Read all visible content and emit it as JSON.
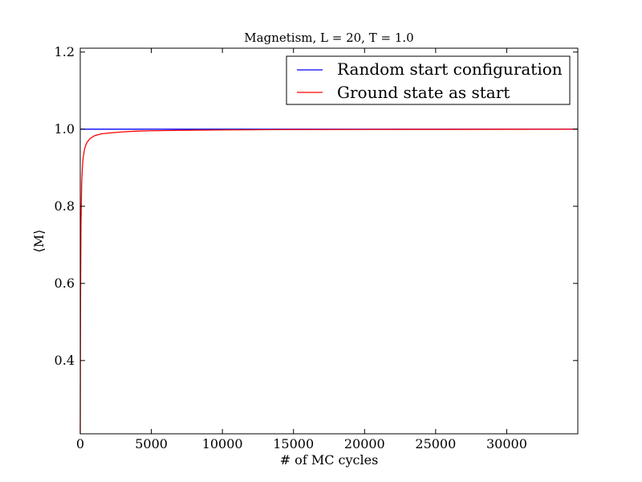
{
  "chart_data": {
    "type": "line",
    "title": "Magnetism, L = 20, T = 1.0",
    "xlabel": "# of MC cycles",
    "ylabel": "⟨M⟩",
    "xlim": [
      0,
      35000
    ],
    "ylim": [
      0.21,
      1.21
    ],
    "xticks": [
      0,
      5000,
      10000,
      15000,
      20000,
      25000,
      30000
    ],
    "yticks": [
      0.4,
      0.6,
      0.8,
      1.0,
      1.2
    ],
    "grid": false,
    "legend_position": "top-right",
    "series": [
      {
        "name": "Random start configuration",
        "color": "#0000ff",
        "x": [
          0,
          35000
        ],
        "y": [
          1.0,
          1.0
        ]
      },
      {
        "name": "Ground state as start",
        "color": "#ff0000",
        "x": [
          0,
          20,
          50,
          100,
          150,
          200,
          300,
          400,
          500,
          700,
          1000,
          1500,
          2000,
          3000,
          4000,
          5000,
          7000,
          10000,
          15000,
          20000,
          25000,
          30000,
          35000
        ],
        "y": [
          0.21,
          0.55,
          0.75,
          0.86,
          0.9,
          0.925,
          0.948,
          0.96,
          0.967,
          0.976,
          0.983,
          0.988,
          0.99,
          0.993,
          0.995,
          0.996,
          0.997,
          0.998,
          0.999,
          0.9993,
          0.9995,
          0.9997,
          0.9998
        ]
      }
    ]
  }
}
